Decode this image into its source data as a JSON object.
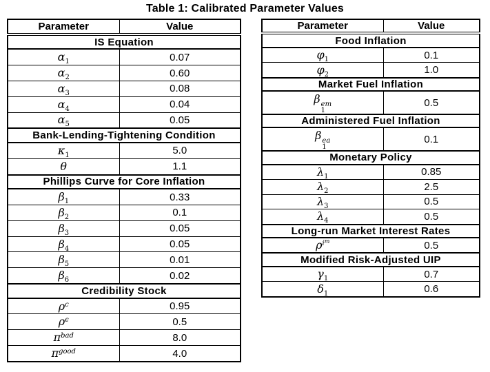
{
  "page": {
    "title": "Table 1: Calibrated Parameter Values"
  },
  "tables": [
    {
      "name": "left",
      "columns": [
        "Parameter",
        "Value"
      ],
      "rows": [
        {
          "type": "section",
          "label": "IS Equation"
        },
        {
          "type": "data",
          "param": {
            "base": "α",
            "sub": "1"
          },
          "value": "0.07"
        },
        {
          "type": "data",
          "param": {
            "base": "α",
            "sub": "2"
          },
          "value": "0.60"
        },
        {
          "type": "data",
          "param": {
            "base": "α",
            "sub": "3"
          },
          "value": "0.08"
        },
        {
          "type": "data",
          "param": {
            "base": "α",
            "sub": "4"
          },
          "value": "0.04"
        },
        {
          "type": "data",
          "param": {
            "base": "α",
            "sub": "5"
          },
          "value": "0.05"
        },
        {
          "type": "section",
          "label": "Bank-Lending-Tightening Condition"
        },
        {
          "type": "data",
          "param": {
            "base": "κ",
            "sub": "1"
          },
          "value": "5.0"
        },
        {
          "type": "data",
          "param": {
            "base": "θ"
          },
          "value": "1.1"
        },
        {
          "type": "section",
          "label": "Phillips Curve for Core Inflation"
        },
        {
          "type": "data",
          "param": {
            "base": "β",
            "sub": "1"
          },
          "value": "0.33"
        },
        {
          "type": "data",
          "param": {
            "base": "β",
            "sub": "2"
          },
          "value": "0.1"
        },
        {
          "type": "data",
          "param": {
            "base": "β",
            "sub": "3"
          },
          "value": "0.05"
        },
        {
          "type": "data",
          "param": {
            "base": "β",
            "sub": "4"
          },
          "value": "0.05"
        },
        {
          "type": "data",
          "param": {
            "base": "β",
            "sub": "5"
          },
          "value": "0.01"
        },
        {
          "type": "data",
          "param": {
            "base": "β",
            "sub": "6"
          },
          "value": "0.02"
        },
        {
          "type": "section",
          "label": "Credibility Stock"
        },
        {
          "type": "data",
          "param": {
            "base": "ρ",
            "sup": "c"
          },
          "value": "0.95"
        },
        {
          "type": "data",
          "param": {
            "base": "ρ",
            "sup": "ϵ"
          },
          "value": "0.5"
        },
        {
          "type": "data",
          "param": {
            "base": "π",
            "sup": "bad"
          },
          "value": "8.0"
        },
        {
          "type": "data",
          "param": {
            "base": "π",
            "sup": "good"
          },
          "value": "4.0"
        }
      ]
    },
    {
      "name": "right",
      "columns": [
        "Parameter",
        "Value"
      ],
      "rows": [
        {
          "type": "section",
          "label": "Food Inflation"
        },
        {
          "type": "data",
          "param": {
            "base": "φ",
            "sub": "1"
          },
          "value": "0.1"
        },
        {
          "type": "data",
          "param": {
            "base": "φ",
            "sub": "2"
          },
          "value": "1.0"
        },
        {
          "type": "section",
          "label": "Market Fuel Inflation"
        },
        {
          "type": "data",
          "param": {
            "base": "β",
            "sub": "1",
            "sup": "em"
          },
          "value": "0.5"
        },
        {
          "type": "section",
          "label": "Administered Fuel Inflation"
        },
        {
          "type": "data",
          "param": {
            "base": "β",
            "sub": "1",
            "sup": "ea"
          },
          "value": "0.1"
        },
        {
          "type": "section",
          "label": "Monetary Policy"
        },
        {
          "type": "data",
          "param": {
            "base": "λ",
            "sub": "1"
          },
          "value": "0.85"
        },
        {
          "type": "data",
          "param": {
            "base": "λ",
            "sub": "2"
          },
          "value": "2.5"
        },
        {
          "type": "data",
          "param": {
            "base": "λ",
            "sub": "3"
          },
          "value": "0.5"
        },
        {
          "type": "data",
          "param": {
            "base": "λ",
            "sub": "4"
          },
          "value": "0.5"
        },
        {
          "type": "section",
          "label": "Long-run Market Interest Rates"
        },
        {
          "type": "data",
          "param": {
            "base": "ρ",
            "sup": "i",
            "sup2": "m"
          },
          "value": "0.5"
        },
        {
          "type": "section",
          "label": "Modified Risk-Adjusted UIP"
        },
        {
          "type": "data",
          "param": {
            "base": "γ",
            "sub": "1"
          },
          "value": "0.7"
        },
        {
          "type": "data",
          "param": {
            "base": "δ",
            "sub": "1"
          },
          "value": "0.6"
        }
      ]
    }
  ]
}
